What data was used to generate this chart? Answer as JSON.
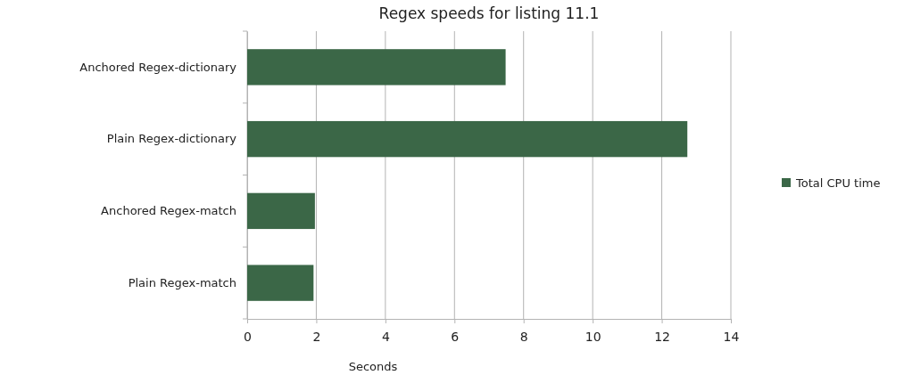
{
  "chart_data": {
    "type": "bar",
    "orientation": "horizontal",
    "title": "Regex speeds for listing 11.1",
    "xlabel": "Seconds",
    "categories": [
      "Anchored Regex-dictionary",
      "Plain Regex-dictionary",
      "Anchored Regex-match",
      "Plain Regex-match"
    ],
    "series": [
      {
        "name": "Total CPU time",
        "color": "#3b6747",
        "values": [
          7.48,
          12.74,
          1.96,
          1.92
        ]
      }
    ],
    "xlim": [
      0,
      14
    ],
    "xticks": [
      0,
      2,
      4,
      6,
      8,
      10,
      12,
      14
    ],
    "grid": "x",
    "legend": "right"
  }
}
